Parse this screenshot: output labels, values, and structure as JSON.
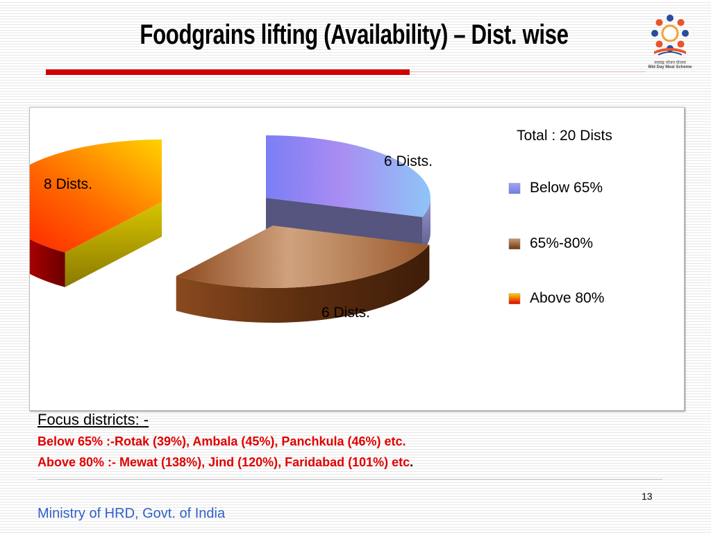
{
  "slide": {
    "title": "Foodgrains lifting (Availability) – Dist. wise",
    "logo": {
      "icon": "mid-day-meal-scheme-logo",
      "text_hindi": "मध्याह्न भोजन योजना",
      "text_english": "Mid Day Meal Scheme"
    },
    "focus": {
      "heading": "Focus districts: -",
      "line1": "Below 65% :-Rotak (39%), Ambala (45%), Panchkula (46%) etc.",
      "line2": "Above 80% :- Mewat (138%), Jind (120%), Faridabad (101%) etc",
      "line2_end": "."
    },
    "page_number": "13",
    "footer": "Ministry of HRD, Govt. of India",
    "colors": {
      "title_bar": "#d40000",
      "focus_text": "#e00000",
      "footer_text": "#2f5fc9"
    }
  },
  "chart_data": {
    "type": "pie",
    "style": "3d-exploded",
    "legend_title": "Total : 20 Dists",
    "legend_position": "right",
    "categories": [
      "Below 65%",
      "65%-80%",
      "Above 80%"
    ],
    "values": [
      6,
      6,
      8
    ],
    "data_labels": [
      "6 Dists.",
      "6 Dists.",
      "8 Dists."
    ],
    "colors": [
      "#9b8cf0",
      "#9a5a2c",
      "#ff4a00"
    ]
  }
}
